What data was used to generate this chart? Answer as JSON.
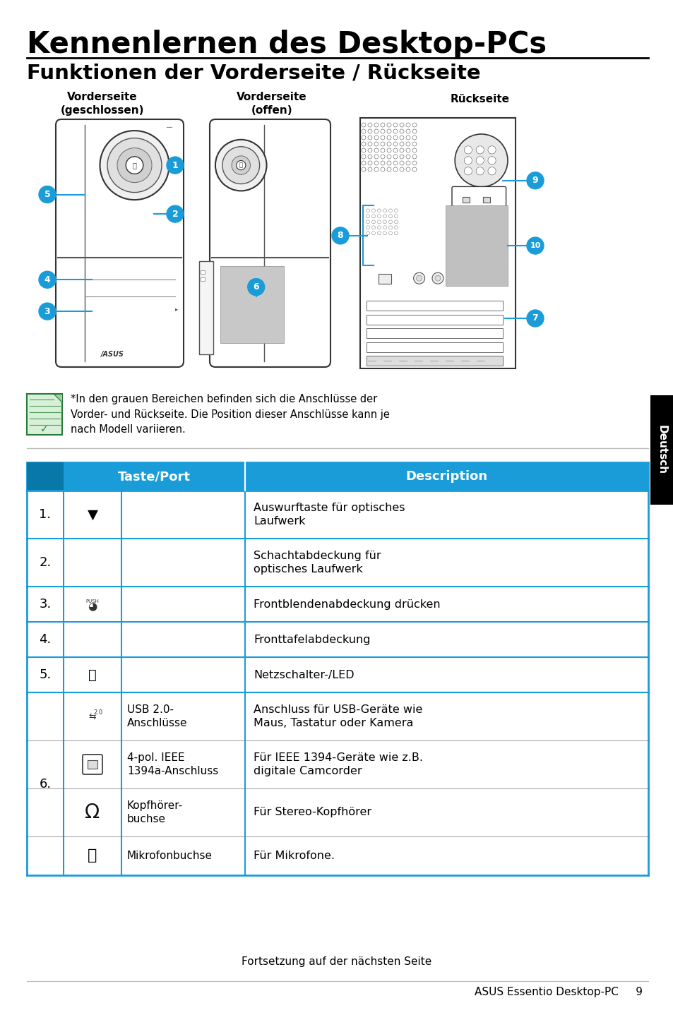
{
  "title": "Kennenlernen des Desktop-PCs",
  "subtitle": "Funktionen der Vorderseite / Rückseite",
  "bg_color": "#ffffff",
  "header_color": "#1a9cd8",
  "table_border_color": "#1a9cd8",
  "table_line_color": "#aaaaaa",
  "note_text": "*In den grauen Bereichen befinden sich die Anschlüsse der\nVorder- und Rückseite. Die Position dieser Anschlüsse kann je\nnach Modell variieren.",
  "footer_center": "Fortsetzung auf der nächsten Seite",
  "footer_right": "ASUS Essentio Desktop-PC     9",
  "col_labels": [
    "",
    "Taste/Port",
    "Description"
  ],
  "diagram_labels": {
    "front_closed": "Vorderseite\n(geschlossen)",
    "front_open": "Vorderseite\n(offen)",
    "back": "Rückseite"
  }
}
